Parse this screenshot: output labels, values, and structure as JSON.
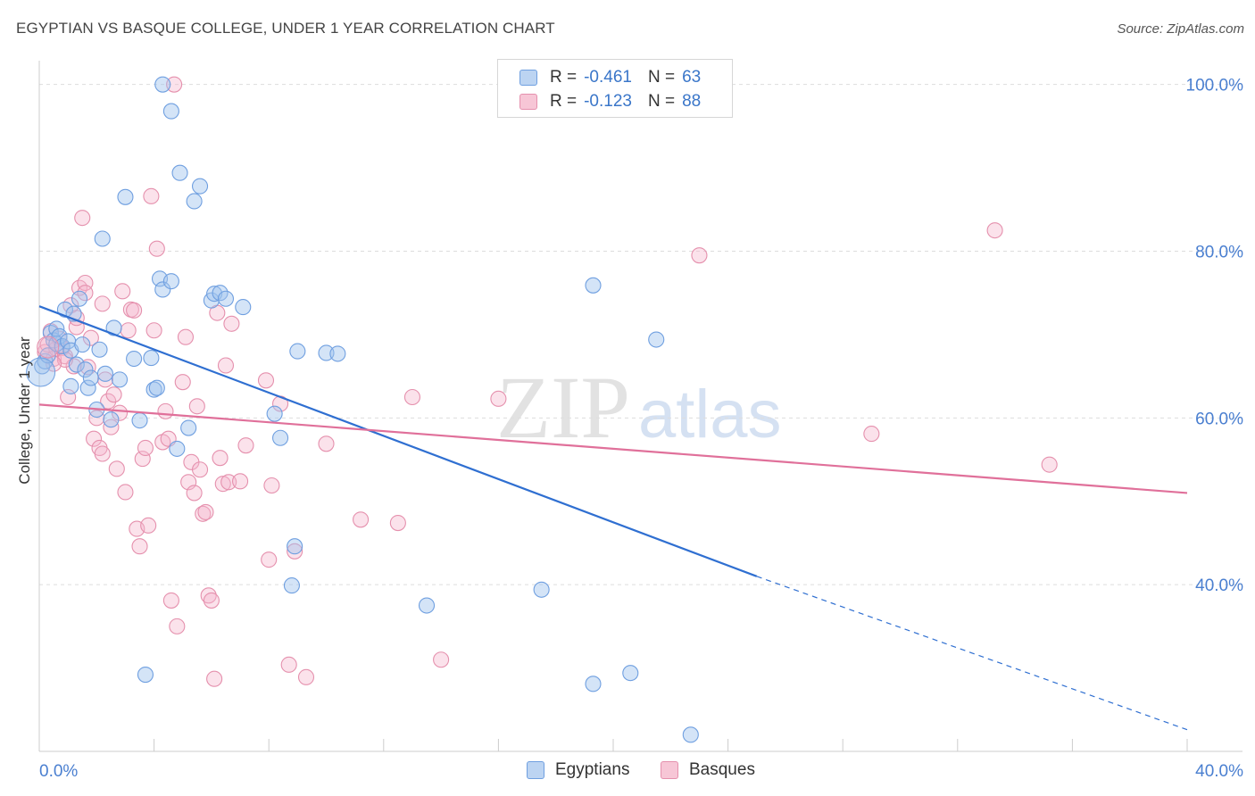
{
  "title": "EGYPTIAN VS BASQUE COLLEGE, UNDER 1 YEAR CORRELATION CHART",
  "source": "Source: ZipAtlas.com",
  "watermark": {
    "zip": "ZIP",
    "atlas": "atlas"
  },
  "legend": {
    "rows": [
      {
        "r_label": "R =",
        "r_value": "-0.461",
        "n_label": "N =",
        "n_value": "63",
        "fill": "#bcd4f2",
        "stroke": "#6f9fe0"
      },
      {
        "r_label": "R =",
        "r_value": "-0.123",
        "n_label": "N =",
        "n_value": "88",
        "fill": "#f7c6d6",
        "stroke": "#e590ad"
      }
    ]
  },
  "bottom_legend": [
    {
      "label": "Egyptians",
      "fill": "#bcd4f2",
      "stroke": "#6f9fe0"
    },
    {
      "label": "Basques",
      "fill": "#f7c6d6",
      "stroke": "#e590ad"
    }
  ],
  "chart_data": {
    "type": "scatter",
    "title": "EGYPTIAN VS BASQUE COLLEGE, UNDER 1 YEAR CORRELATION CHART",
    "ylabel": "College, Under 1 year",
    "xlabel": "",
    "xlim": [
      0,
      40
    ],
    "ylim": [
      20,
      102
    ],
    "x_tick_labels": [
      "0.0%",
      "40.0%"
    ],
    "y_ticks": [
      40,
      60,
      80,
      100
    ],
    "y_tick_labels": [
      "40.0%",
      "60.0%",
      "80.0%",
      "100.0%"
    ],
    "grid": true,
    "legend_position": "top-center",
    "series": [
      {
        "name": "Egyptians",
        "color": "#6f9fe0",
        "line_color": "#2f6fd1",
        "r": -0.461,
        "n": 63,
        "trend": {
          "x0": 0,
          "y0": 73.4,
          "x1": 25,
          "y1": 41.0,
          "dash_to_x": 40,
          "dash_to_y": 22.6
        },
        "points": [
          [
            0.1,
            66.2
          ],
          [
            0.2,
            66.8
          ],
          [
            0.3,
            67.5
          ],
          [
            0.4,
            70.2
          ],
          [
            0.5,
            69.3
          ],
          [
            0.6,
            70.7
          ],
          [
            0.6,
            68.9
          ],
          [
            0.7,
            69.8
          ],
          [
            0.8,
            68.6
          ],
          [
            0.9,
            73.0
          ],
          [
            1.0,
            69.2
          ],
          [
            1.1,
            68.1
          ],
          [
            1.2,
            72.5
          ],
          [
            1.3,
            66.4
          ],
          [
            1.4,
            74.3
          ],
          [
            1.5,
            68.8
          ],
          [
            1.6,
            65.8
          ],
          [
            1.7,
            63.6
          ],
          [
            1.8,
            64.8
          ],
          [
            2.0,
            61.0
          ],
          [
            2.1,
            68.2
          ],
          [
            2.2,
            81.5
          ],
          [
            2.3,
            65.3
          ],
          [
            2.5,
            59.8
          ],
          [
            2.6,
            70.8
          ],
          [
            2.8,
            64.6
          ],
          [
            3.0,
            86.5
          ],
          [
            3.3,
            67.1
          ],
          [
            3.5,
            59.7
          ],
          [
            3.9,
            67.2
          ],
          [
            4.0,
            63.4
          ],
          [
            4.1,
            63.6
          ],
          [
            4.2,
            76.7
          ],
          [
            4.3,
            75.4
          ],
          [
            4.6,
            76.4
          ],
          [
            4.8,
            56.3
          ],
          [
            4.9,
            89.4
          ],
          [
            5.2,
            58.8
          ],
          [
            5.4,
            86.0
          ],
          [
            5.6,
            87.8
          ],
          [
            6.0,
            74.1
          ],
          [
            6.1,
            74.9
          ],
          [
            6.3,
            75.0
          ],
          [
            6.5,
            74.3
          ],
          [
            7.1,
            73.3
          ],
          [
            8.2,
            60.5
          ],
          [
            8.4,
            57.6
          ],
          [
            8.8,
            39.9
          ],
          [
            8.9,
            44.6
          ],
          [
            9.0,
            68.0
          ],
          [
            10.0,
            67.8
          ],
          [
            10.4,
            67.7
          ],
          [
            13.5,
            37.5
          ],
          [
            17.5,
            39.4
          ],
          [
            19.3,
            75.9
          ],
          [
            19.3,
            28.1
          ],
          [
            20.6,
            29.4
          ],
          [
            21.5,
            69.4
          ],
          [
            22.7,
            22.0
          ],
          [
            3.7,
            29.2
          ],
          [
            4.3,
            100.0
          ],
          [
            4.6,
            96.8
          ],
          [
            1.1,
            63.8
          ]
        ]
      },
      {
        "name": "Basques",
        "color": "#e590ad",
        "line_color": "#e0709a",
        "r": -0.123,
        "n": 88,
        "trend": {
          "x0": 0,
          "y0": 61.6,
          "x1": 40,
          "y1": 51.0
        },
        "points": [
          [
            0.2,
            67.9
          ],
          [
            0.3,
            68.8
          ],
          [
            0.4,
            70.4
          ],
          [
            0.5,
            67.1
          ],
          [
            0.6,
            68.3
          ],
          [
            0.7,
            69.5
          ],
          [
            0.8,
            68.4
          ],
          [
            0.9,
            67.4
          ],
          [
            1.0,
            62.5
          ],
          [
            1.1,
            73.5
          ],
          [
            1.2,
            66.2
          ],
          [
            1.3,
            70.9
          ],
          [
            1.4,
            75.6
          ],
          [
            1.5,
            84.0
          ],
          [
            1.6,
            76.2
          ],
          [
            1.7,
            66.1
          ],
          [
            1.8,
            69.6
          ],
          [
            1.9,
            57.5
          ],
          [
            2.0,
            60.0
          ],
          [
            2.1,
            56.4
          ],
          [
            2.2,
            55.7
          ],
          [
            2.3,
            64.6
          ],
          [
            2.4,
            62.0
          ],
          [
            2.5,
            58.9
          ],
          [
            2.6,
            62.8
          ],
          [
            2.7,
            53.9
          ],
          [
            2.8,
            60.6
          ],
          [
            2.9,
            75.2
          ],
          [
            3.0,
            51.1
          ],
          [
            3.1,
            70.5
          ],
          [
            3.2,
            73.0
          ],
          [
            3.3,
            72.9
          ],
          [
            3.4,
            46.7
          ],
          [
            3.5,
            44.6
          ],
          [
            3.6,
            55.1
          ],
          [
            3.7,
            56.4
          ],
          [
            3.8,
            47.1
          ],
          [
            3.9,
            86.6
          ],
          [
            4.0,
            70.5
          ],
          [
            4.1,
            80.3
          ],
          [
            4.3,
            57.1
          ],
          [
            4.4,
            60.8
          ],
          [
            4.5,
            57.5
          ],
          [
            4.6,
            38.1
          ],
          [
            4.8,
            35.0
          ],
          [
            5.0,
            64.3
          ],
          [
            5.1,
            69.7
          ],
          [
            5.2,
            52.3
          ],
          [
            5.3,
            54.7
          ],
          [
            5.4,
            51.0
          ],
          [
            5.5,
            61.4
          ],
          [
            5.6,
            53.8
          ],
          [
            5.7,
            48.5
          ],
          [
            5.8,
            48.7
          ],
          [
            5.9,
            38.7
          ],
          [
            6.0,
            38.1
          ],
          [
            6.1,
            28.7
          ],
          [
            6.2,
            72.6
          ],
          [
            6.3,
            55.2
          ],
          [
            6.4,
            52.1
          ],
          [
            6.5,
            66.3
          ],
          [
            6.6,
            52.3
          ],
          [
            6.7,
            71.3
          ],
          [
            7.0,
            52.4
          ],
          [
            7.2,
            56.7
          ],
          [
            7.9,
            64.5
          ],
          [
            8.0,
            43.0
          ],
          [
            8.1,
            51.9
          ],
          [
            8.4,
            61.7
          ],
          [
            8.7,
            30.4
          ],
          [
            8.9,
            44.0
          ],
          [
            9.3,
            28.9
          ],
          [
            10.0,
            56.9
          ],
          [
            11.2,
            47.8
          ],
          [
            12.5,
            47.4
          ],
          [
            13.0,
            62.5
          ],
          [
            14.0,
            31.0
          ],
          [
            16.0,
            62.3
          ],
          [
            23.0,
            79.5
          ],
          [
            29.0,
            58.1
          ],
          [
            33.3,
            82.5
          ],
          [
            35.2,
            54.4
          ],
          [
            4.7,
            100.0
          ],
          [
            0.9,
            67.0
          ],
          [
            1.6,
            75.0
          ],
          [
            0.5,
            66.5
          ],
          [
            2.2,
            73.7
          ],
          [
            1.3,
            72.0
          ]
        ]
      }
    ]
  }
}
